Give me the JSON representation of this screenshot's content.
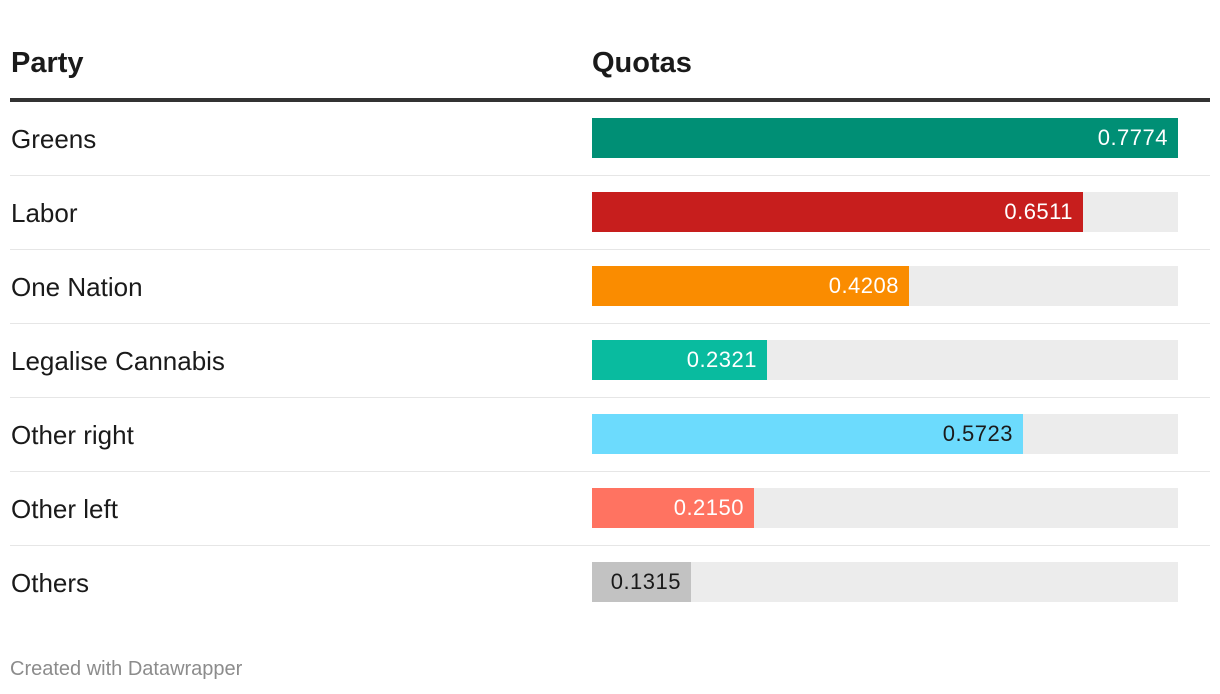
{
  "chart_data": {
    "type": "table",
    "columns": [
      "Party",
      "Quotas"
    ],
    "max": 0.7774,
    "rows": [
      {
        "party": "Greens",
        "value": 0.7774,
        "label": "0.7774",
        "color": "#008f75",
        "text_color": "#ffffff"
      },
      {
        "party": "Labor",
        "value": 0.6511,
        "label": "0.6511",
        "color": "#c71e1d",
        "text_color": "#ffffff"
      },
      {
        "party": "One Nation",
        "value": 0.4208,
        "label": "0.4208",
        "color": "#fa8c00",
        "text_color": "#ffffff"
      },
      {
        "party": "Legalise Cannabis",
        "value": 0.2321,
        "label": "0.2321",
        "color": "#09bb9f",
        "text_color": "#ffffff"
      },
      {
        "party": "Other right",
        "value": 0.5723,
        "label": "0.5723",
        "color": "#6cdbfd",
        "text_color": "#1a1a1a"
      },
      {
        "party": "Other left",
        "value": 0.215,
        "label": "0.2150",
        "color": "#ff7361",
        "text_color": "#ffffff"
      },
      {
        "party": "Others",
        "value": 0.1315,
        "label": "0.1315",
        "color": "#c2c2c2",
        "text_color": "#1a1a1a"
      }
    ]
  },
  "footer": "Created with Datawrapper",
  "colors": {
    "track": "#ececec",
    "header_rule": "#333333",
    "row_rule": "#e6e6e6"
  }
}
